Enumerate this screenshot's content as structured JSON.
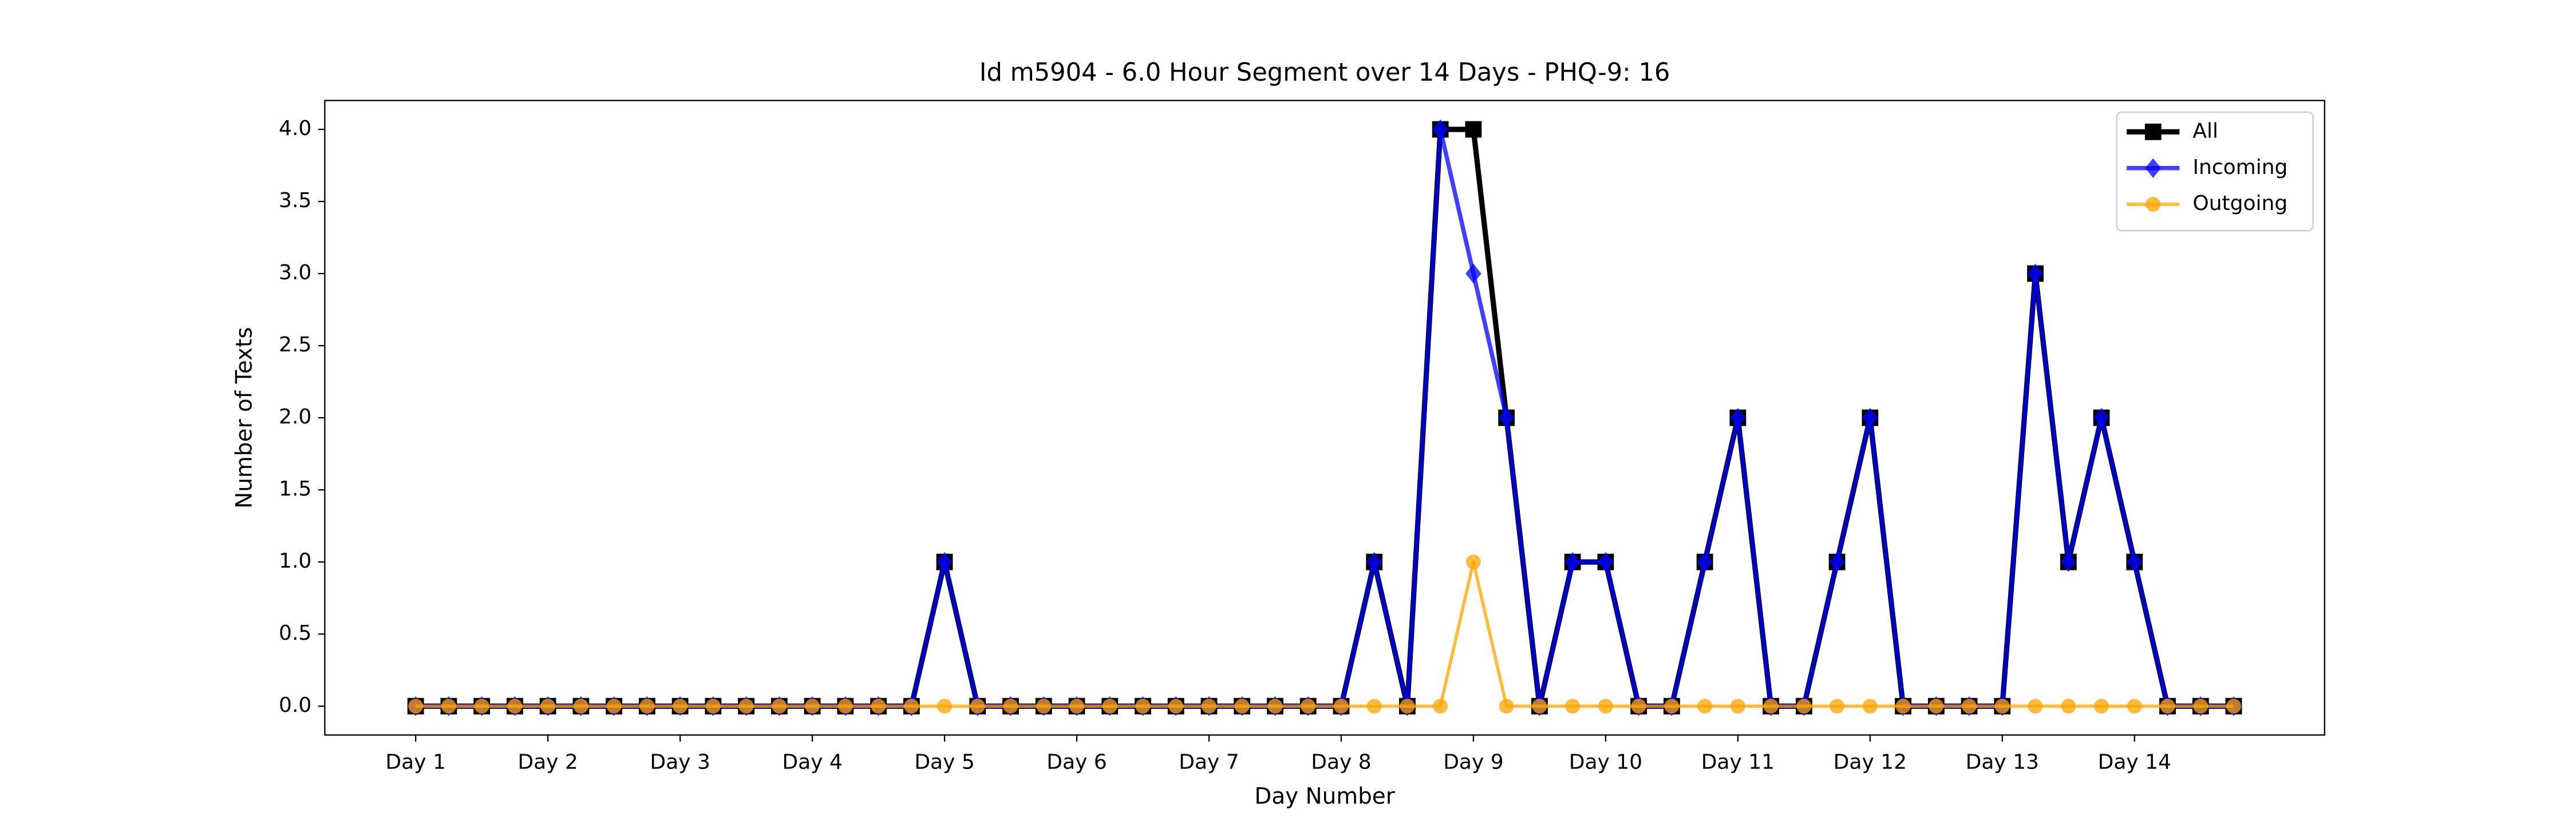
{
  "chart_data": {
    "type": "line",
    "title": "Id m5904 - 6.0 Hour Segment over 14 Days - PHQ-9: 16",
    "xlabel": "Day Number",
    "ylabel": "Number of Texts",
    "x": [
      0,
      1,
      2,
      3,
      4,
      5,
      6,
      7,
      8,
      9,
      10,
      11,
      12,
      13,
      14,
      15,
      16,
      17,
      18,
      19,
      20,
      21,
      22,
      23,
      24,
      25,
      26,
      27,
      28,
      29,
      30,
      31,
      32,
      33,
      34,
      35,
      36,
      37,
      38,
      39,
      40,
      41,
      42,
      43,
      44,
      45,
      46,
      47,
      48,
      49,
      50,
      51,
      52,
      53,
      54,
      55
    ],
    "series": [
      {
        "name": "All",
        "color": "#000000",
        "marker": "square",
        "values": [
          0,
          0,
          0,
          0,
          0,
          0,
          0,
          0,
          0,
          0,
          0,
          0,
          0,
          0,
          0,
          0,
          1,
          0,
          0,
          0,
          0,
          0,
          0,
          0,
          0,
          0,
          0,
          0,
          0,
          1,
          0,
          4,
          4,
          2,
          0,
          1,
          1,
          0,
          0,
          1,
          2,
          0,
          0,
          1,
          2,
          0,
          0,
          0,
          0,
          3,
          1,
          2,
          1,
          0,
          0,
          0
        ]
      },
      {
        "name": "Incoming",
        "color": "#0000ff",
        "marker": "diamond",
        "values": [
          0,
          0,
          0,
          0,
          0,
          0,
          0,
          0,
          0,
          0,
          0,
          0,
          0,
          0,
          0,
          0,
          1,
          0,
          0,
          0,
          0,
          0,
          0,
          0,
          0,
          0,
          0,
          0,
          0,
          1,
          0,
          4,
          3,
          2,
          0,
          1,
          1,
          0,
          0,
          1,
          2,
          0,
          0,
          1,
          2,
          0,
          0,
          0,
          0,
          3,
          1,
          2,
          1,
          0,
          0,
          0
        ]
      },
      {
        "name": "Outgoing",
        "color": "#ffa500",
        "marker": "circle",
        "values": [
          0,
          0,
          0,
          0,
          0,
          0,
          0,
          0,
          0,
          0,
          0,
          0,
          0,
          0,
          0,
          0,
          0,
          0,
          0,
          0,
          0,
          0,
          0,
          0,
          0,
          0,
          0,
          0,
          0,
          0,
          0,
          0,
          1,
          0,
          0,
          0,
          0,
          0,
          0,
          0,
          0,
          0,
          0,
          0,
          0,
          0,
          0,
          0,
          0,
          0,
          0,
          0,
          0,
          0,
          0,
          0
        ]
      }
    ],
    "xlim": [
      -2.75,
      57.75
    ],
    "xticks": [
      {
        "value": 0,
        "label": "Day 1"
      },
      {
        "value": 4,
        "label": "Day 2"
      },
      {
        "value": 8,
        "label": "Day 3"
      },
      {
        "value": 12,
        "label": "Day 4"
      },
      {
        "value": 16,
        "label": "Day 5"
      },
      {
        "value": 20,
        "label": "Day 6"
      },
      {
        "value": 24,
        "label": "Day 7"
      },
      {
        "value": 28,
        "label": "Day 8"
      },
      {
        "value": 32,
        "label": "Day 9"
      },
      {
        "value": 36,
        "label": "Day 10"
      },
      {
        "value": 40,
        "label": "Day 11"
      },
      {
        "value": 44,
        "label": "Day 12"
      },
      {
        "value": 48,
        "label": "Day 13"
      },
      {
        "value": 52,
        "label": "Day 14"
      }
    ],
    "ylim": [
      -0.2,
      4.2
    ],
    "yticks": [
      {
        "value": 0,
        "label": "0.0"
      },
      {
        "value": 0.5,
        "label": "0.5"
      },
      {
        "value": 1,
        "label": "1.0"
      },
      {
        "value": 1.5,
        "label": "1.5"
      },
      {
        "value": 2,
        "label": "2.0"
      },
      {
        "value": 2.5,
        "label": "2.5"
      },
      {
        "value": 3,
        "label": "3.0"
      },
      {
        "value": 3.5,
        "label": "3.5"
      },
      {
        "value": 4,
        "label": "4.0"
      }
    ],
    "grid": false,
    "legend": "upper right"
  }
}
